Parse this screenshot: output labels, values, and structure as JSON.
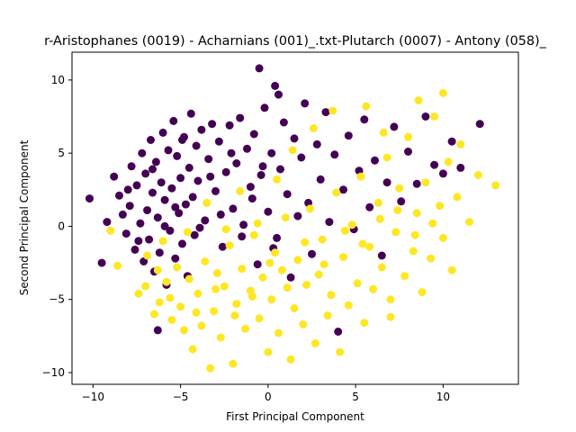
{
  "chart_data": {
    "type": "scatter",
    "title": "r-Aristophanes (0019) - Acharnians (001)_.txt-Plutarch (0007) - Antony (058)_",
    "xlabel": "First Principal Component",
    "ylabel": "Second Principal Component",
    "xlim": [
      -11.2,
      14.3
    ],
    "ylim": [
      -10.8,
      11.9
    ],
    "x_ticks": [
      -10,
      -5,
      0,
      5,
      10
    ],
    "y_ticks": [
      -10,
      -5,
      0,
      5,
      10
    ],
    "tick_labels_x": [
      "−10",
      "−5",
      "0",
      "5",
      "10"
    ],
    "tick_labels_y": [
      "−10",
      "−5",
      "0",
      "5",
      "10"
    ],
    "grid": false,
    "legend": "none",
    "series": [
      {
        "color": "#440154",
        "points": [
          [
            -10.2,
            1.9
          ],
          [
            -9.5,
            -2.5
          ],
          [
            -9.2,
            0.3
          ],
          [
            -8.8,
            3.4
          ],
          [
            -8.5,
            2.1
          ],
          [
            -8.3,
            0.8
          ],
          [
            -8.1,
            -0.5
          ],
          [
            -7.9,
            1.4
          ],
          [
            -7.8,
            4.1
          ],
          [
            -7.6,
            -1.6
          ],
          [
            -7.5,
            2.8
          ],
          [
            -7.3,
            0.2
          ],
          [
            -7.2,
            5.0
          ],
          [
            -7.1,
            -2.4
          ],
          [
            -7.0,
            3.6
          ],
          [
            -6.9,
            1.1
          ],
          [
            -6.8,
            -0.9
          ],
          [
            -6.7,
            5.9
          ],
          [
            -6.6,
            2.3
          ],
          [
            -6.5,
            -3.1
          ],
          [
            -6.4,
            4.4
          ],
          [
            -6.3,
            0.6
          ],
          [
            -6.2,
            -1.8
          ],
          [
            -6.1,
            3.0
          ],
          [
            -6.0,
            6.4
          ],
          [
            -5.9,
            1.8
          ],
          [
            -5.8,
            -4.0
          ],
          [
            -5.7,
            5.2
          ],
          [
            -5.6,
            -0.3
          ],
          [
            -5.5,
            2.6
          ],
          [
            -5.4,
            7.2
          ],
          [
            -5.3,
            -2.2
          ],
          [
            -5.2,
            4.8
          ],
          [
            -5.1,
            0.9
          ],
          [
            -5.0,
            3.3
          ],
          [
            -4.9,
            -1.2
          ],
          [
            -4.8,
            6.1
          ],
          [
            -4.7,
            1.5
          ],
          [
            -4.6,
            -3.4
          ],
          [
            -4.5,
            4.0
          ],
          [
            -4.4,
            7.7
          ],
          [
            -4.3,
            2.0
          ],
          [
            -4.2,
            -0.6
          ],
          [
            -4.1,
            5.5
          ],
          [
            -4.0,
            3.1
          ],
          [
            -3.8,
            6.6
          ],
          [
            -3.6,
            0.4
          ],
          [
            -3.4,
            4.6
          ],
          [
            -3.2,
            7.0
          ],
          [
            -3.0,
            2.4
          ],
          [
            -2.8,
            5.8
          ],
          [
            -2.6,
            -1.4
          ],
          [
            -2.4,
            3.7
          ],
          [
            -2.2,
            6.9
          ],
          [
            -2.0,
            1.2
          ],
          [
            -1.8,
            4.3
          ],
          [
            -1.6,
            7.4
          ],
          [
            -1.4,
            0.1
          ],
          [
            -1.2,
            5.3
          ],
          [
            -1.0,
            2.7
          ],
          [
            -0.8,
            6.3
          ],
          [
            -0.6,
            -2.6
          ],
          [
            -0.4,
            3.5
          ],
          [
            -0.2,
            8.1
          ],
          [
            0.0,
            1.0
          ],
          [
            0.2,
            5.0
          ],
          [
            0.4,
            9.6
          ],
          [
            0.5,
            -0.8
          ],
          [
            0.7,
            3.9
          ],
          [
            0.9,
            7.1
          ],
          [
            1.1,
            2.2
          ],
          [
            1.3,
            -3.5
          ],
          [
            1.5,
            6.0
          ],
          [
            1.7,
            0.7
          ],
          [
            1.9,
            4.7
          ],
          [
            2.1,
            8.4
          ],
          [
            2.3,
            1.6
          ],
          [
            2.5,
            -1.9
          ],
          [
            2.8,
            5.6
          ],
          [
            3.0,
            3.2
          ],
          [
            3.3,
            7.8
          ],
          [
            3.5,
            0.3
          ],
          [
            3.8,
            4.9
          ],
          [
            4.0,
            -7.2
          ],
          [
            4.3,
            2.5
          ],
          [
            4.6,
            6.2
          ],
          [
            4.9,
            -0.2
          ],
          [
            5.2,
            3.8
          ],
          [
            5.5,
            7.3
          ],
          [
            5.8,
            1.3
          ],
          [
            6.1,
            4.5
          ],
          [
            6.5,
            -2.0
          ],
          [
            6.8,
            3.0
          ],
          [
            7.2,
            6.8
          ],
          [
            7.6,
            1.7
          ],
          [
            8.0,
            5.1
          ],
          [
            8.5,
            2.9
          ],
          [
            9.0,
            7.5
          ],
          [
            9.5,
            4.2
          ],
          [
            10.0,
            3.6
          ],
          [
            10.5,
            5.8
          ],
          [
            11.0,
            4.0
          ],
          [
            12.1,
            7.0
          ],
          [
            -0.5,
            10.8
          ],
          [
            0.6,
            9.0
          ],
          [
            -6.3,
            -7.1
          ],
          [
            -5.9,
            0.0
          ],
          [
            -7.4,
            -1.0
          ],
          [
            -8.0,
            2.5
          ],
          [
            -6.6,
            3.9
          ],
          [
            -5.3,
            1.3
          ],
          [
            -4.9,
            5.9
          ],
          [
            -3.9,
            -0.1
          ],
          [
            -3.3,
            3.4
          ],
          [
            -2.7,
            0.8
          ],
          [
            -2.1,
            5.0
          ],
          [
            -1.5,
            -0.7
          ],
          [
            -0.9,
            1.9
          ],
          [
            -0.3,
            4.1
          ],
          [
            0.3,
            -1.5
          ]
        ]
      },
      {
        "color": "#fde725",
        "points": [
          [
            -9.0,
            -0.3
          ],
          [
            -8.6,
            -2.7
          ],
          [
            -7.4,
            -4.6
          ],
          [
            -6.9,
            -2.0
          ],
          [
            -6.5,
            -6.0
          ],
          [
            -6.2,
            -5.2
          ],
          [
            -6.0,
            -1.0
          ],
          [
            -5.8,
            -3.8
          ],
          [
            -5.5,
            -6.4
          ],
          [
            -5.2,
            -2.8
          ],
          [
            -5.0,
            -5.5
          ],
          [
            -4.8,
            -7.1
          ],
          [
            -4.5,
            -3.6
          ],
          [
            -4.3,
            -8.4
          ],
          [
            -4.0,
            -4.6
          ],
          [
            -3.8,
            -6.8
          ],
          [
            -3.6,
            -2.4
          ],
          [
            -3.3,
            -9.7
          ],
          [
            -3.1,
            -5.8
          ],
          [
            -2.9,
            -3.2
          ],
          [
            -2.7,
            -7.6
          ],
          [
            -2.5,
            -4.1
          ],
          [
            -2.2,
            -1.3
          ],
          [
            -2.0,
            -9.4
          ],
          [
            -1.8,
            -5.3
          ],
          [
            -1.5,
            -2.9
          ],
          [
            -1.3,
            -7.0
          ],
          [
            -1.0,
            -4.4
          ],
          [
            -0.8,
            -0.6
          ],
          [
            -0.5,
            -6.3
          ],
          [
            -0.3,
            -3.5
          ],
          [
            0.0,
            -8.6
          ],
          [
            0.2,
            -5.0
          ],
          [
            0.4,
            -1.8
          ],
          [
            0.6,
            -7.3
          ],
          [
            0.8,
            -3.0
          ],
          [
            1.0,
            0.6
          ],
          [
            1.3,
            -9.1
          ],
          [
            1.5,
            -5.6
          ],
          [
            1.7,
            -2.3
          ],
          [
            2.0,
            -6.7
          ],
          [
            2.2,
            -4.0
          ],
          [
            2.4,
            1.2
          ],
          [
            2.7,
            -8.0
          ],
          [
            2.9,
            -3.3
          ],
          [
            3.1,
            -0.9
          ],
          [
            3.4,
            -6.1
          ],
          [
            3.6,
            -4.7
          ],
          [
            3.9,
            2.3
          ],
          [
            4.1,
            -8.6
          ],
          [
            4.3,
            -2.1
          ],
          [
            4.6,
            -5.4
          ],
          [
            4.8,
            0.1
          ],
          [
            5.1,
            -3.9
          ],
          [
            5.3,
            3.4
          ],
          [
            5.5,
            -6.6
          ],
          [
            5.8,
            -1.4
          ],
          [
            6.0,
            -4.3
          ],
          [
            6.3,
            1.6
          ],
          [
            6.5,
            -2.8
          ],
          [
            6.8,
            4.7
          ],
          [
            7.0,
            -5.0
          ],
          [
            7.3,
            -0.4
          ],
          [
            7.5,
            2.6
          ],
          [
            7.8,
            -3.4
          ],
          [
            8.0,
            6.1
          ],
          [
            8.3,
            -1.7
          ],
          [
            8.5,
            0.9
          ],
          [
            8.8,
            -4.5
          ],
          [
            9.0,
            3.0
          ],
          [
            9.3,
            -2.2
          ],
          [
            9.5,
            7.5
          ],
          [
            9.8,
            1.4
          ],
          [
            10.0,
            -0.8
          ],
          [
            10.3,
            4.4
          ],
          [
            10.5,
            -3.0
          ],
          [
            10.8,
            2.0
          ],
          [
            11.0,
            5.6
          ],
          [
            11.5,
            0.3
          ],
          [
            12.0,
            3.5
          ],
          [
            13.0,
            2.8
          ],
          [
            10.0,
            9.1
          ],
          [
            7.0,
            -6.2
          ],
          [
            -4.6,
            -0.4
          ],
          [
            -3.5,
            1.6
          ],
          [
            -2.4,
            -0.2
          ],
          [
            -1.6,
            2.4
          ],
          [
            -0.6,
            0.2
          ],
          [
            0.5,
            3.2
          ],
          [
            1.4,
            5.2
          ],
          [
            2.6,
            6.7
          ],
          [
            3.7,
            7.9
          ],
          [
            5.6,
            8.2
          ],
          [
            6.6,
            6.4
          ],
          [
            8.6,
            8.6
          ],
          [
            -7.0,
            -4.1
          ],
          [
            -6.3,
            -3.0
          ],
          [
            -5.6,
            -4.9
          ],
          [
            -4.1,
            -5.9
          ],
          [
            -3.0,
            -4.3
          ],
          [
            -1.9,
            -6.1
          ],
          [
            -0.9,
            -4.8
          ],
          [
            0.1,
            -2.5
          ],
          [
            1.1,
            -4.2
          ],
          [
            2.1,
            -1.1
          ],
          [
            3.2,
            -2.6
          ],
          [
            4.4,
            -0.3
          ],
          [
            5.4,
            -1.2
          ],
          [
            6.4,
            0.5
          ],
          [
            7.4,
            1.1
          ],
          [
            8.4,
            -0.6
          ],
          [
            9.4,
            0.2
          ]
        ]
      }
    ]
  }
}
